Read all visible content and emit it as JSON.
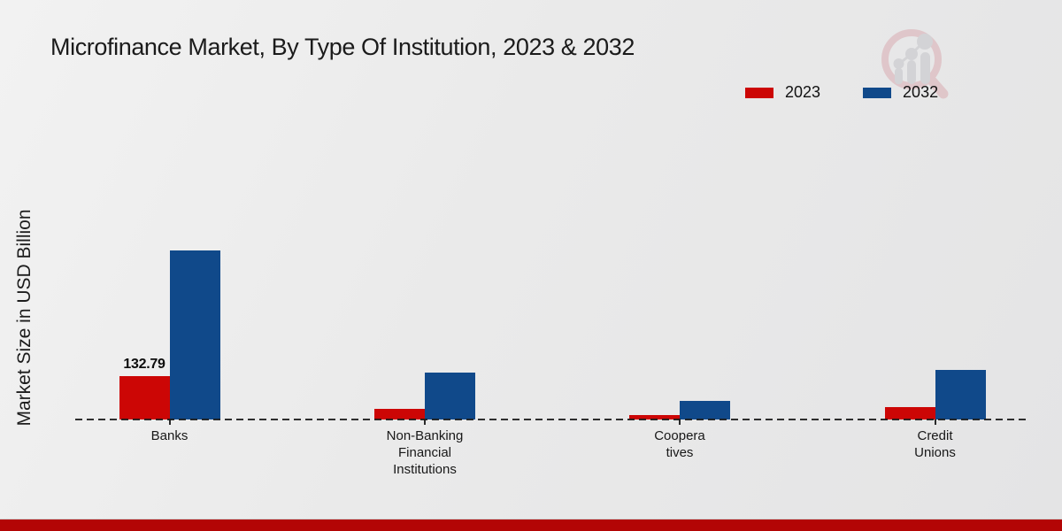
{
  "chart_data": {
    "type": "bar",
    "title": "Microfinance Market, By Type Of Institution, 2023 & 2032",
    "ylabel": "Market Size in USD Billion",
    "xlabel": "",
    "categories": [
      "Banks",
      "Non-Banking Financial Institutions",
      "Cooperatives",
      "Credit Unions"
    ],
    "category_label_lines": [
      [
        "Banks"
      ],
      [
        "Non-Banking",
        "Financial",
        "Institutions"
      ],
      [
        "Coopera",
        "tives"
      ],
      [
        "Credit",
        "Unions"
      ]
    ],
    "series": [
      {
        "name": "2023",
        "color": "#cc0605",
        "values": [
          132.79,
          33.4,
          14.6,
          37.9
        ]
      },
      {
        "name": "2032",
        "color": "#10498a",
        "values": [
          517.0,
          143.6,
          56.1,
          150.9
        ]
      }
    ],
    "value_labels": [
      {
        "category_index": 0,
        "series_index": 0,
        "text": "132.79"
      }
    ],
    "ylim": [
      0,
      560
    ],
    "grid": false,
    "y_axis_visible": false,
    "legend_position": "top-right",
    "baseline_style": "dashed"
  },
  "watermark": {
    "name": "magnifier-bar-chart-logo"
  },
  "footer": {
    "bar_color": "#b30505"
  }
}
